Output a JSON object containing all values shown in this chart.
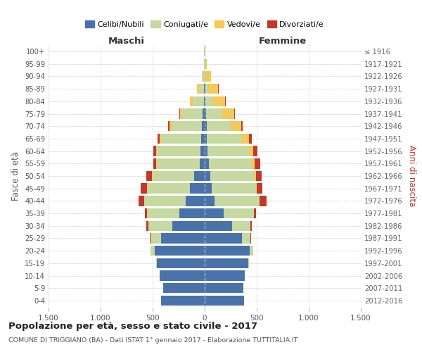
{
  "age_groups": [
    "0-4",
    "5-9",
    "10-14",
    "15-19",
    "20-24",
    "25-29",
    "30-34",
    "35-39",
    "40-44",
    "45-49",
    "50-54",
    "55-59",
    "60-64",
    "65-69",
    "70-74",
    "75-79",
    "80-84",
    "85-89",
    "90-94",
    "95-99",
    "100+"
  ],
  "birth_years": [
    "2012-2016",
    "2007-2011",
    "2002-2006",
    "1997-2001",
    "1992-1996",
    "1987-1991",
    "1982-1986",
    "1977-1981",
    "1972-1976",
    "1967-1971",
    "1962-1966",
    "1957-1961",
    "1952-1956",
    "1947-1951",
    "1942-1946",
    "1937-1941",
    "1932-1936",
    "1927-1931",
    "1922-1926",
    "1917-1921",
    "≤ 1916"
  ],
  "males": {
    "celibe": [
      420,
      400,
      430,
      460,
      480,
      420,
      310,
      240,
      180,
      140,
      100,
      50,
      40,
      35,
      28,
      18,
      8,
      5,
      3,
      2,
      2
    ],
    "coniugato": [
      0,
      0,
      2,
      8,
      40,
      100,
      230,
      310,
      400,
      410,
      400,
      410,
      420,
      385,
      290,
      195,
      105,
      50,
      15,
      4,
      2
    ],
    "vedovo": [
      0,
      0,
      0,
      0,
      0,
      0,
      1,
      1,
      2,
      3,
      5,
      5,
      8,
      12,
      18,
      25,
      28,
      18,
      7,
      2,
      0
    ],
    "divorziato": [
      0,
      0,
      0,
      1,
      2,
      5,
      18,
      25,
      55,
      65,
      55,
      28,
      22,
      18,
      12,
      6,
      4,
      2,
      1,
      0,
      0
    ]
  },
  "females": {
    "nubile": [
      380,
      370,
      385,
      420,
      435,
      360,
      265,
      185,
      95,
      70,
      55,
      40,
      28,
      22,
      18,
      12,
      6,
      4,
      2,
      1,
      1
    ],
    "coniugata": [
      0,
      0,
      2,
      8,
      28,
      78,
      175,
      285,
      430,
      420,
      420,
      415,
      395,
      330,
      235,
      155,
      72,
      32,
      10,
      4,
      2
    ],
    "vedova": [
      0,
      0,
      0,
      0,
      0,
      1,
      2,
      2,
      5,
      8,
      18,
      28,
      45,
      72,
      95,
      115,
      120,
      95,
      48,
      14,
      3
    ],
    "divorziata": [
      0,
      0,
      0,
      0,
      2,
      5,
      14,
      24,
      62,
      55,
      52,
      48,
      38,
      28,
      18,
      10,
      6,
      2,
      1,
      0,
      0
    ]
  },
  "colors": {
    "celibe": "#4a72aa",
    "coniugato": "#c5d9a0",
    "vedovo": "#f5c85a",
    "divorziato": "#c0392b"
  },
  "legend_labels": [
    "Celibi/Nubili",
    "Coniugati/e",
    "Vedovi/e",
    "Divorziati/e"
  ],
  "title": "Popolazione per età, sesso e stato civile - 2017",
  "subtitle": "COMUNE DI TRIGGIANO (BA) - Dati ISTAT 1° gennaio 2017 - Elaborazione TUTTITALIA.IT",
  "xlabel_left": "Maschi",
  "xlabel_right": "Femmine",
  "ylabel_left": "Fasce di età",
  "ylabel_right": "Anni di nascita",
  "xlim": 1500,
  "xtick_vals": [
    -1500,
    -1000,
    -500,
    0,
    500,
    1000,
    1500
  ],
  "xtick_labels": [
    "1.500",
    "1.000",
    "500",
    "0",
    "500",
    "1.000",
    "1.500"
  ],
  "bg_color": "#ffffff",
  "grid_color": "#cccccc"
}
